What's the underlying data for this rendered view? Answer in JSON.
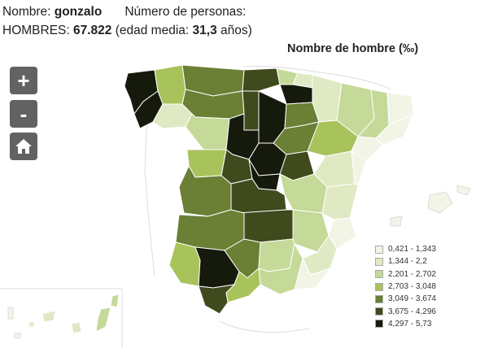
{
  "header": {
    "name_label": "Nombre:",
    "name_value": "gonzalo",
    "persons_label": "Número de personas:",
    "men_label": "HOMBRES:",
    "men_value": "67.822",
    "age_prefix": "(edad media:",
    "age_value": "31,3",
    "age_suffix": "años)"
  },
  "map": {
    "title": "Nombre de hombre (‰)",
    "controls": {
      "zoom_in": "+",
      "zoom_out": "-",
      "home_icon": "home-icon"
    }
  },
  "legend": {
    "items": [
      {
        "label": "0,421 - 1,343",
        "color": "#f2f5e6"
      },
      {
        "label": "1,344 - 2,2",
        "color": "#dfe9c3"
      },
      {
        "label": "2,201 - 2,702",
        "color": "#c5d998"
      },
      {
        "label": "2,703 - 3,048",
        "color": "#a8c35b"
      },
      {
        "label": "3,049 - 3,674",
        "color": "#6b7f35"
      },
      {
        "label": "3,675 - 4,296",
        "color": "#3f4a1d"
      },
      {
        "label": "4,297 - 5,73",
        "color": "#151a0c"
      }
    ]
  },
  "colors": {
    "c1": "#f2f5e6",
    "c2": "#dfe9c3",
    "c3": "#c5d998",
    "c4": "#a8c35b",
    "c5": "#6b7f35",
    "c6": "#3f4a1d",
    "c7": "#151a0c",
    "country_outline": "#dcdcdc",
    "control_bg": "#626262"
  }
}
